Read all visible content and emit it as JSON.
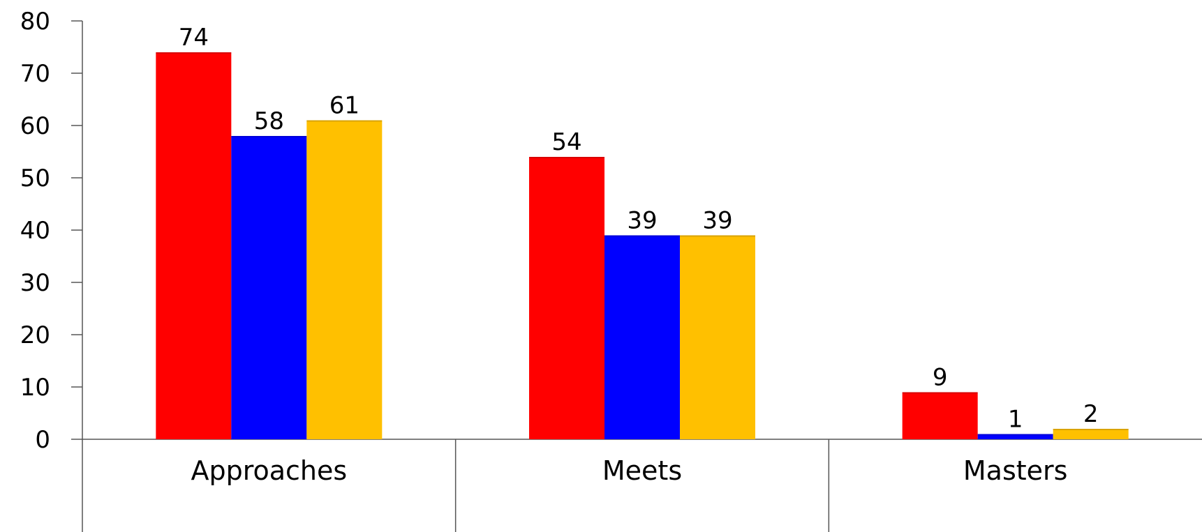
{
  "chart_data": {
    "type": "bar",
    "categories": [
      "Approaches",
      "Meets",
      "Masters"
    ],
    "series": [
      {
        "values": [
          74,
          54,
          9
        ],
        "color": "#ff0000"
      },
      {
        "values": [
          58,
          39,
          1
        ],
        "color": "#0000ff"
      },
      {
        "values": [
          61,
          39,
          2
        ],
        "color": "#ffc000"
      }
    ],
    "yticks": [
      "0",
      "10",
      "20",
      "30",
      "40",
      "50",
      "60",
      "70",
      "80"
    ],
    "ylim": [
      0,
      80
    ],
    "grid": false,
    "legend": "none"
  }
}
